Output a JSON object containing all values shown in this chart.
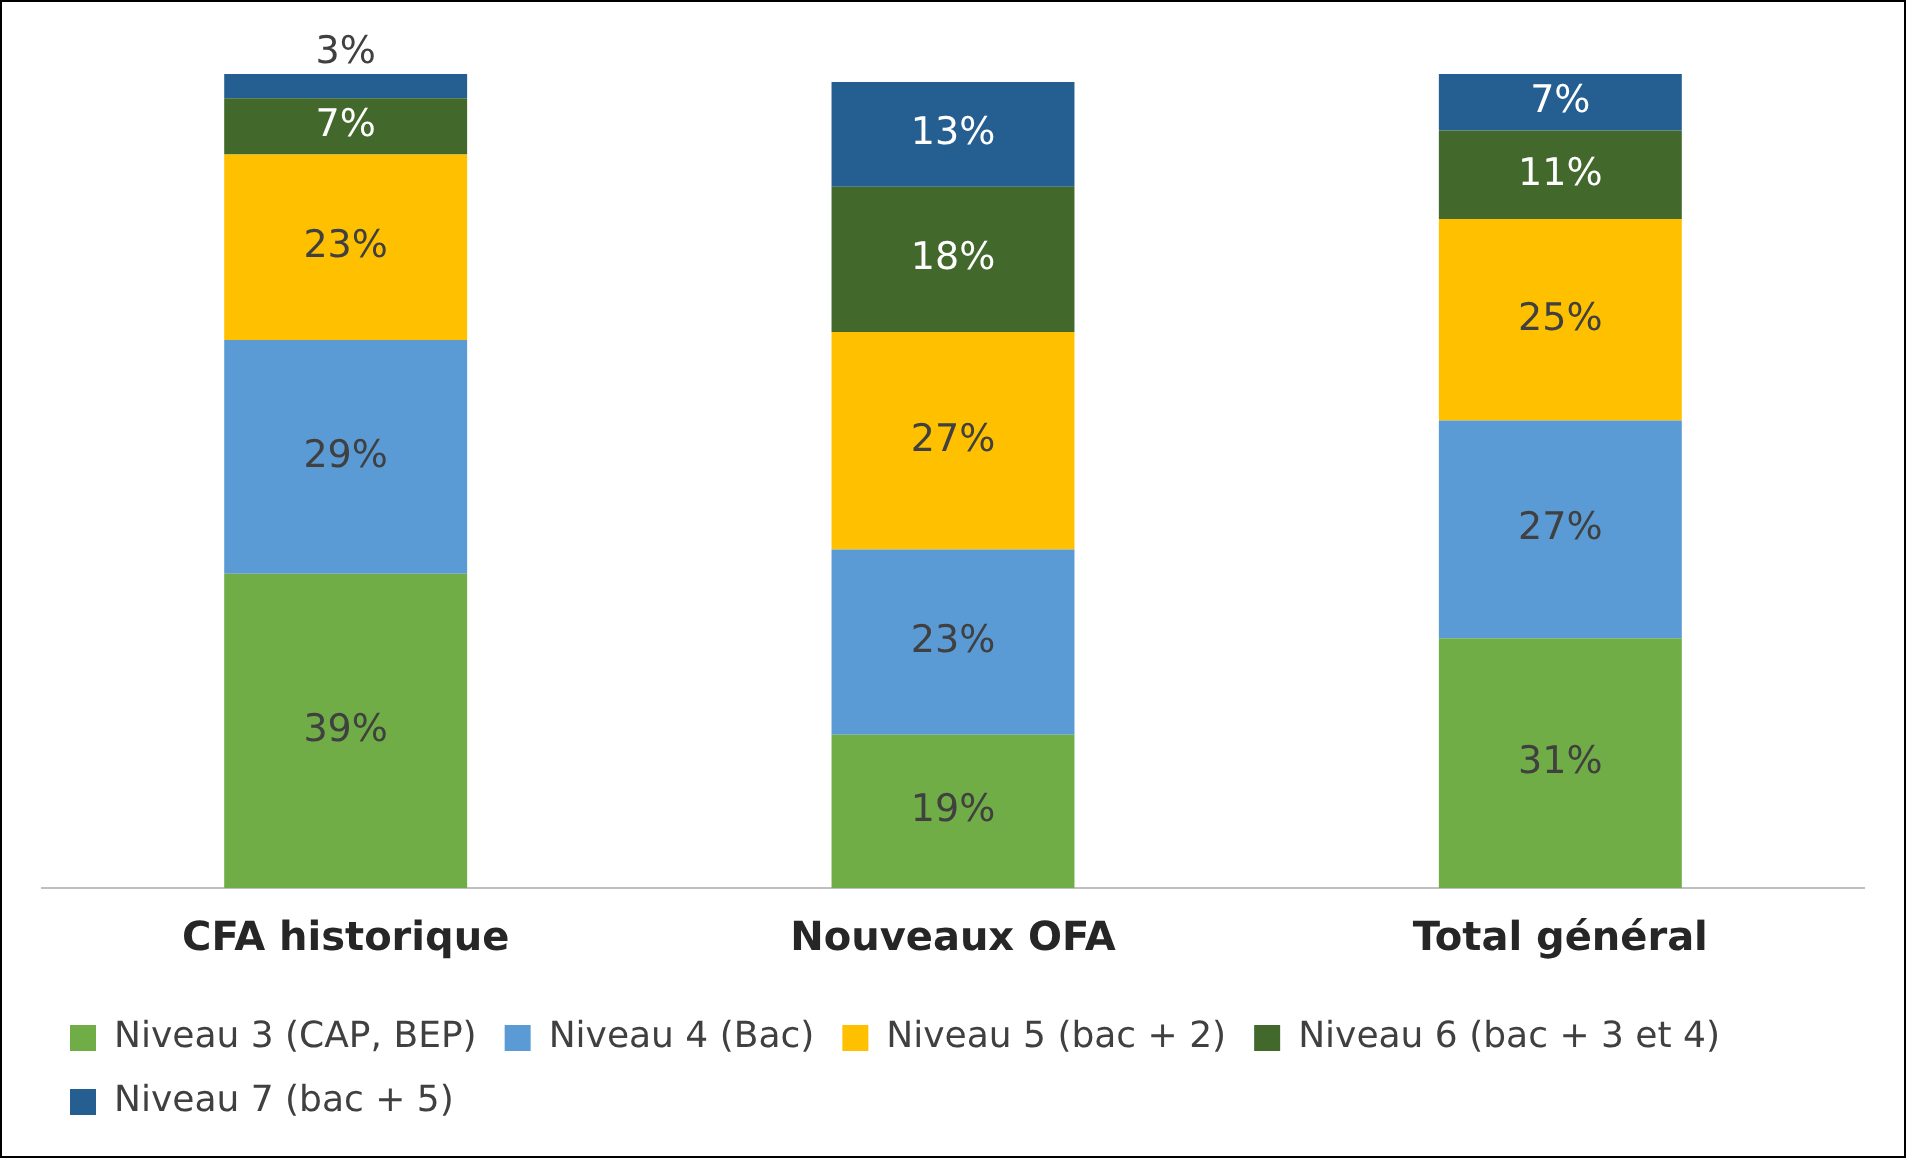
{
  "chart_data": {
    "type": "bar",
    "stacked": true,
    "grid": false,
    "legend": "bottom",
    "tick_labels": "x",
    "categories": [
      "CFA historique",
      "Nouveaux OFA",
      "Total général"
    ],
    "series": [
      {
        "name": "Niveau 3 (CAP, BEP)",
        "color": "#70ad47",
        "values": [
          39,
          19,
          31
        ],
        "value_labels": [
          "39%",
          "19%",
          "31%"
        ]
      },
      {
        "name": "Niveau 4 (Bac)",
        "color": "#5b9bd5",
        "values": [
          29,
          23,
          27
        ],
        "value_labels": [
          "29%",
          "23%",
          "27%"
        ]
      },
      {
        "name": "Niveau 5 (bac + 2)",
        "color": "#ffc000",
        "values": [
          23,
          27,
          25
        ],
        "value_labels": [
          "23%",
          "27%",
          "25%"
        ]
      },
      {
        "name": "Niveau 6 (bac + 3 et 4)",
        "color": "#43682b",
        "values": [
          7,
          18,
          11
        ],
        "value_labels": [
          "7%",
          "18%",
          "11%"
        ]
      },
      {
        "name": "Niveau 7 (bac + 5)",
        "color": "#255e91",
        "values": [
          3,
          13,
          7
        ],
        "value_labels": [
          "3%",
          "13%",
          "7%"
        ]
      }
    ]
  }
}
